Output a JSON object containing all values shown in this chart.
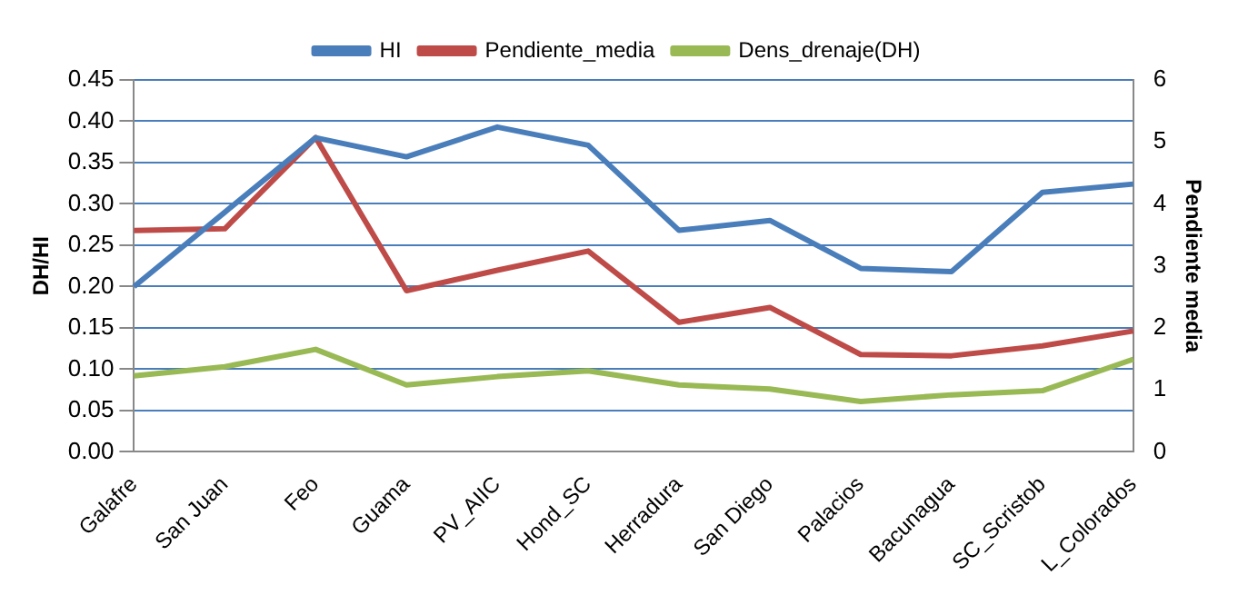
{
  "chart_data": {
    "type": "line",
    "categories": [
      "Galafre",
      "San Juan",
      "Feo",
      "Guama",
      "PV_AIIC",
      "Hond_SC",
      "Herradura",
      "San Diego",
      "Palacios",
      "Bacunagua",
      "SC_Scristob",
      "L_Colorados"
    ],
    "ylabel": "DH/HI",
    "y2label": "Pendiente media",
    "series": [
      {
        "name": "HI",
        "color": "#4a7ebb",
        "values": [
          0.2,
          0.29,
          0.38,
          0.357,
          0.393,
          0.371,
          0.268,
          0.28,
          0.222,
          0.218,
          0.314,
          0.324
        ]
      },
      {
        "name": "Pendiente_media",
        "color": "#be4b48",
        "axis": "y2",
        "values": [
          3.57,
          3.6,
          5.07,
          2.6,
          2.93,
          3.24,
          2.09,
          2.33,
          1.57,
          1.55,
          1.71,
          1.95
        ]
      },
      {
        "name": "Dens_drenaje(DH)",
        "color": "#98b954",
        "values": [
          0.092,
          0.103,
          0.124,
          0.081,
          0.091,
          0.098,
          0.081,
          0.076,
          0.061,
          0.069,
          0.074,
          0.112
        ]
      }
    ],
    "ylim": [
      0,
      0.45
    ],
    "yticks": [
      {
        "value": 0,
        "label": "0.00"
      },
      {
        "value": 0.05,
        "label": "0.05"
      },
      {
        "value": 0.1,
        "label": "0.10"
      },
      {
        "value": 0.15,
        "label": "0.15"
      },
      {
        "value": 0.2,
        "label": "0.20"
      },
      {
        "value": 0.25,
        "label": "0.25"
      },
      {
        "value": 0.3,
        "label": "0.30"
      },
      {
        "value": 0.35,
        "label": "0.35"
      },
      {
        "value": 0.4,
        "label": "0.40"
      },
      {
        "value": 0.45,
        "label": "0.45"
      }
    ],
    "y2lim": [
      0,
      6
    ],
    "y2ticks": [
      0,
      1,
      2,
      3,
      4,
      5,
      6
    ],
    "grid": "y",
    "legend": "top",
    "marker": "none",
    "line_style": "solid"
  }
}
